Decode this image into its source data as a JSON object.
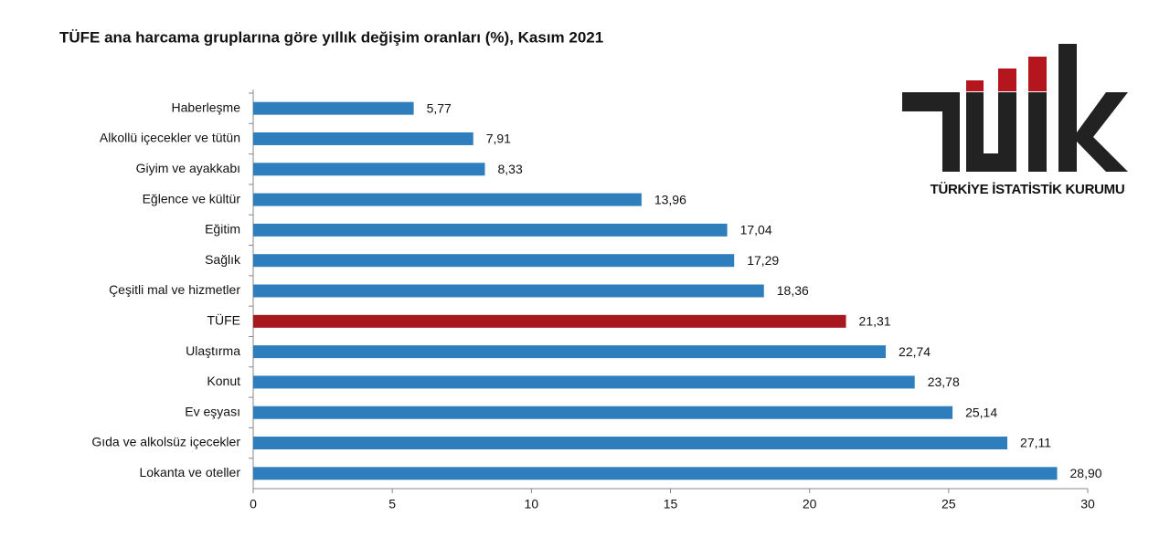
{
  "chart_data": {
    "type": "hbar",
    "title": "TÜFE ana harcama gruplarına göre yıllık değişim oranları (%), Kasım 2021",
    "categories": [
      "Haberleşme",
      "Alkollü içecekler ve tütün",
      "Giyim ve ayakkabı",
      "Eğlence ve kültür",
      "Eğitim",
      "Sağlık",
      "Çeşitli mal ve hizmetler",
      "TÜFE",
      "Ulaştırma",
      "Konut",
      "Ev eşyası",
      "Gıda ve alkolsüz içecekler",
      "Lokanta ve oteller"
    ],
    "values": [
      5.77,
      7.91,
      8.33,
      13.96,
      17.04,
      17.29,
      18.36,
      21.31,
      22.74,
      23.78,
      25.14,
      27.11,
      28.9
    ],
    "value_labels": [
      "5,77",
      "7,91",
      "8,33",
      "13,96",
      "17,04",
      "17,29",
      "18,36",
      "21,31",
      "22,74",
      "23,78",
      "25,14",
      "27,11",
      "28,90"
    ],
    "colors": [
      "#2e7ebd",
      "#2e7ebd",
      "#2e7ebd",
      "#2e7ebd",
      "#2e7ebd",
      "#2e7ebd",
      "#2e7ebd",
      "#a8191f",
      "#2e7ebd",
      "#2e7ebd",
      "#2e7ebd",
      "#2e7ebd",
      "#2e7ebd"
    ],
    "xlim": [
      0,
      30
    ],
    "xticks": [
      0,
      5,
      10,
      15,
      20,
      25,
      30
    ],
    "grid": false
  },
  "logo": {
    "text": "TÜRKİYE İSTATİSTİK KURUMU"
  }
}
